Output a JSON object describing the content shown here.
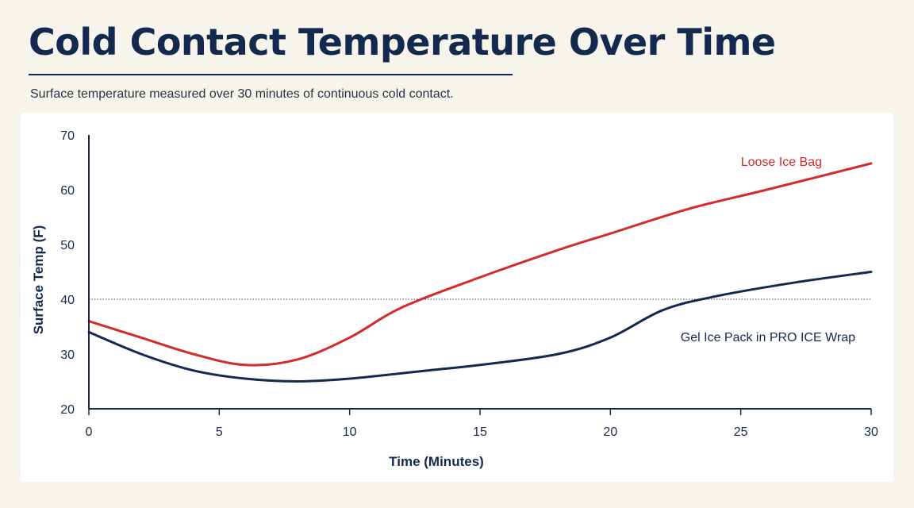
{
  "page": {
    "title": "Cold Contact Temperature Over Time",
    "subtitle": "Surface temperature measured over 30 minutes of continuous cold contact."
  },
  "chart_data": {
    "type": "line",
    "title": "",
    "xlabel": "Time (Minutes)",
    "ylabel": "Surface Temp (F)",
    "xlim": [
      0,
      30
    ],
    "ylim": [
      20,
      70
    ],
    "x_ticks": [
      0,
      5,
      10,
      15,
      20,
      25,
      30
    ],
    "y_ticks": [
      20,
      30,
      40,
      50,
      60,
      70
    ],
    "grid": false,
    "reference_line": {
      "y": 40,
      "style": "dotted"
    },
    "series": [
      {
        "name": "Loose Ice Bag",
        "color": "#d42a2a",
        "points": [
          [
            0,
            36
          ],
          [
            2,
            33
          ],
          [
            4,
            30
          ],
          [
            6,
            28
          ],
          [
            8,
            29
          ],
          [
            10,
            33
          ],
          [
            12,
            38.5
          ],
          [
            15,
            44
          ],
          [
            18,
            49
          ],
          [
            20,
            52
          ],
          [
            23,
            56.5
          ],
          [
            26,
            60
          ],
          [
            30,
            64.8
          ]
        ]
      },
      {
        "name": "Gel Ice Pack in PRO ICE Wrap",
        "color": "#132a4e",
        "points": [
          [
            0,
            34
          ],
          [
            2,
            30
          ],
          [
            4,
            27
          ],
          [
            6,
            25.5
          ],
          [
            8,
            25
          ],
          [
            10,
            25.5
          ],
          [
            13,
            27
          ],
          [
            15,
            28
          ],
          [
            18,
            30
          ],
          [
            20,
            33
          ],
          [
            22,
            38
          ],
          [
            24,
            40.5
          ],
          [
            27,
            43
          ],
          [
            30,
            45
          ]
        ]
      }
    ]
  }
}
